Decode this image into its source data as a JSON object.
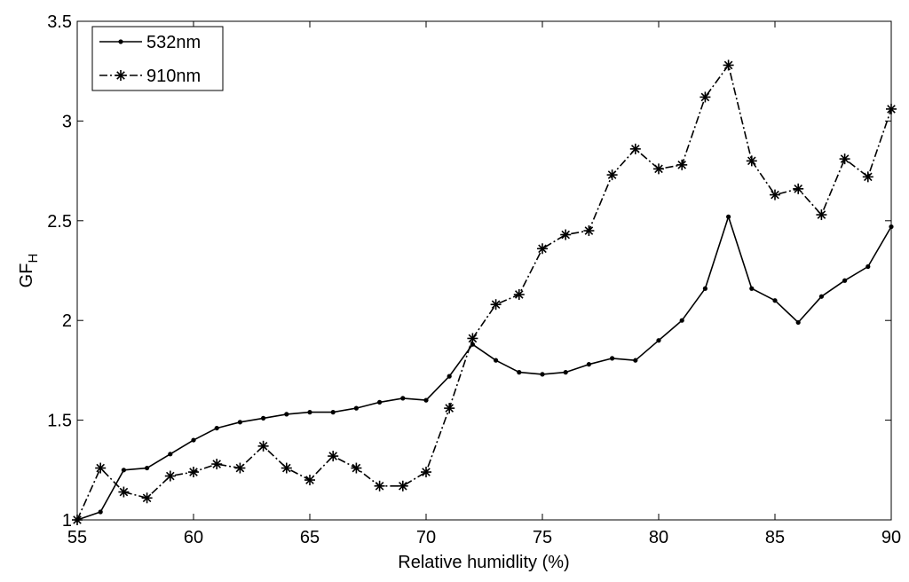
{
  "chart_data": {
    "type": "line",
    "title": "",
    "xlabel": "Relative humidlity (%)",
    "ylabel_main": "GF",
    "ylabel_sub": "H",
    "xlim": [
      55,
      90
    ],
    "ylim": [
      1,
      3.5
    ],
    "xticks": [
      55,
      60,
      65,
      70,
      75,
      80,
      85,
      90
    ],
    "yticks": [
      1,
      1.5,
      2,
      2.5,
      3,
      3.5
    ],
    "xtick_labels": [
      "55",
      "60",
      "65",
      "70",
      "75",
      "80",
      "85",
      "90"
    ],
    "ytick_labels": [
      "1",
      "1.5",
      "2",
      "2.5",
      "3",
      "3.5"
    ],
    "grid": false,
    "legend_position": "top-left",
    "x": [
      55,
      56,
      57,
      58,
      59,
      60,
      61,
      62,
      63,
      64,
      65,
      66,
      67,
      68,
      69,
      70,
      71,
      72,
      73,
      74,
      75,
      76,
      77,
      78,
      79,
      80,
      81,
      82,
      83,
      84,
      85,
      86,
      87,
      88,
      89,
      90
    ],
    "series": [
      {
        "name": "532nm",
        "line_style": "solid",
        "marker": "dot",
        "color": "#000000",
        "values": [
          1.0,
          1.04,
          1.25,
          1.26,
          1.33,
          1.4,
          1.46,
          1.49,
          1.51,
          1.53,
          1.54,
          1.54,
          1.56,
          1.59,
          1.61,
          1.6,
          1.72,
          1.88,
          1.8,
          1.74,
          1.73,
          1.74,
          1.78,
          1.81,
          1.8,
          1.9,
          2.0,
          2.16,
          2.52,
          2.16,
          2.1,
          1.99,
          2.12,
          2.2,
          2.27,
          2.47
        ]
      },
      {
        "name": "910nm",
        "line_style": "dashdot",
        "marker": "star",
        "color": "#000000",
        "values": [
          1.0,
          1.26,
          1.14,
          1.11,
          1.22,
          1.24,
          1.28,
          1.26,
          1.37,
          1.26,
          1.2,
          1.32,
          1.26,
          1.17,
          1.17,
          1.24,
          1.56,
          1.91,
          2.08,
          2.13,
          2.36,
          2.43,
          2.45,
          2.73,
          2.86,
          2.76,
          2.78,
          3.12,
          3.28,
          2.8,
          2.63,
          2.66,
          2.53,
          2.81,
          2.72,
          3.06
        ]
      }
    ]
  }
}
